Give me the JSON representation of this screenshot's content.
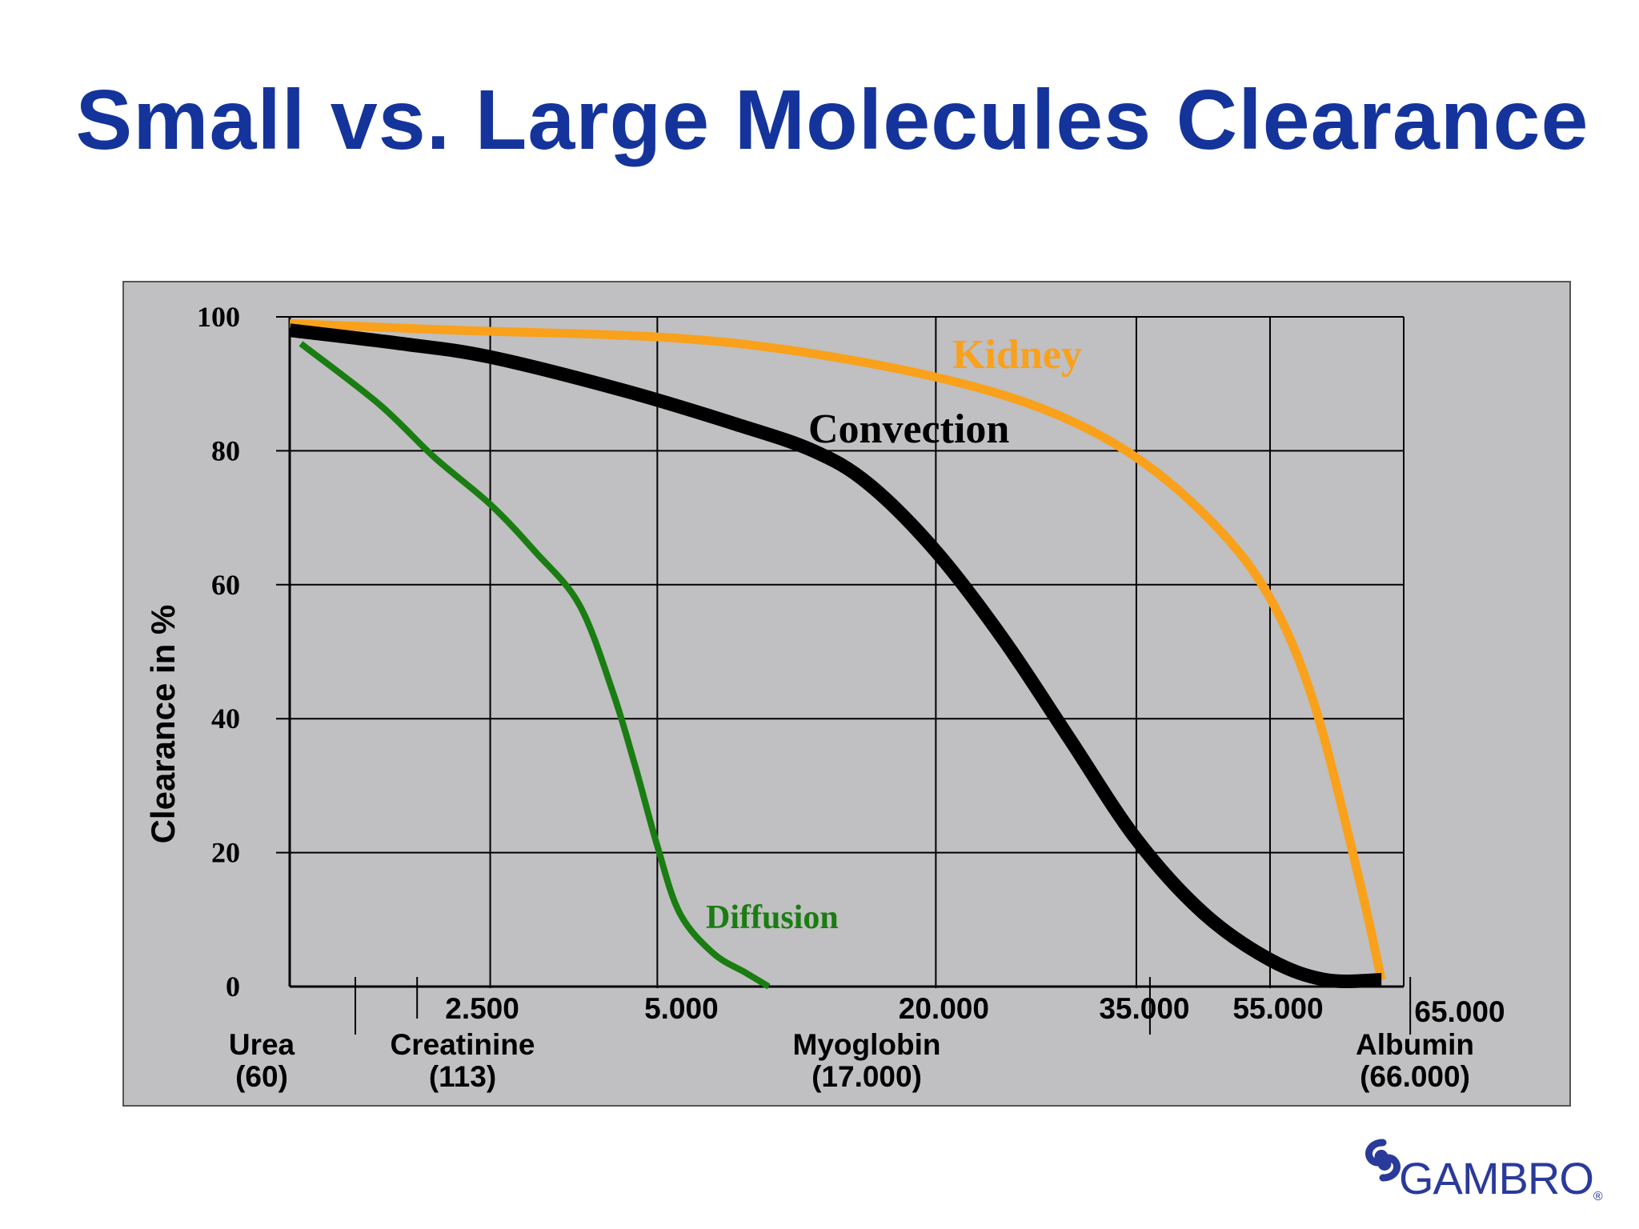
{
  "slide": {
    "title": "Small vs. Large Molecules Clearance"
  },
  "logo": {
    "text": "GAMBRO",
    "mark": "®",
    "icon": "gambro-swirl-icon",
    "color": "#2a3a9a"
  },
  "colors": {
    "title": "#14349c",
    "plot_bg": "#c0bfc1",
    "kidney": "#f9a11b",
    "convection": "#000000",
    "diffusion": "#1a7d12"
  },
  "chart_data": {
    "type": "line",
    "title": "",
    "ylabel": "Clearance in %",
    "ylim": [
      0,
      100
    ],
    "y_ticks": [
      "0",
      "20",
      "40",
      "60",
      "80",
      "100"
    ],
    "x_ticks": [
      "2.500",
      "5.000",
      "20.000",
      "35.000",
      "55.000",
      "65.000"
    ],
    "x_ticks_note": "axis is not linear in molecular weight; x values are expressed as fraction of axis span",
    "molecules": [
      {
        "name": "Urea",
        "weight": "(60)",
        "x": 0.0
      },
      {
        "name": "Creatinine",
        "weight": "(113)",
        "x": 0.1
      },
      {
        "name": "Myoglobin",
        "weight": "(17.000)",
        "x": 0.51
      },
      {
        "name": "Albumin",
        "weight": "(66.000)",
        "x": 0.98
      }
    ],
    "x_tick_positions": [
      0.18,
      0.33,
      0.58,
      0.76,
      0.88,
      1.0
    ],
    "series": [
      {
        "name": "Kidney",
        "color": "#f9a11b",
        "x": [
          0.0,
          0.15,
          0.33,
          0.45,
          0.58,
          0.68,
          0.76,
          0.83,
          0.88,
          0.92,
          0.96,
          0.98
        ],
        "y": [
          99,
          98,
          97,
          95,
          91,
          86,
          79,
          69,
          58,
          42,
          16,
          1
        ]
      },
      {
        "name": "Convection",
        "color": "#000000",
        "x": [
          0.0,
          0.1,
          0.18,
          0.3,
          0.4,
          0.47,
          0.52,
          0.58,
          0.64,
          0.7,
          0.76,
          0.82,
          0.88,
          0.93,
          0.98
        ],
        "y": [
          98,
          96,
          94,
          89,
          84,
          80,
          75,
          65,
          52,
          37,
          22,
          11,
          4,
          1,
          1
        ]
      },
      {
        "name": "Diffusion",
        "color": "#1a7d12",
        "x": [
          0.01,
          0.08,
          0.13,
          0.18,
          0.22,
          0.26,
          0.29,
          0.31,
          0.33,
          0.35,
          0.38,
          0.41,
          0.43
        ],
        "y": [
          96,
          87,
          79,
          72,
          65,
          57,
          44,
          33,
          21,
          11,
          5,
          2,
          0
        ]
      }
    ]
  }
}
